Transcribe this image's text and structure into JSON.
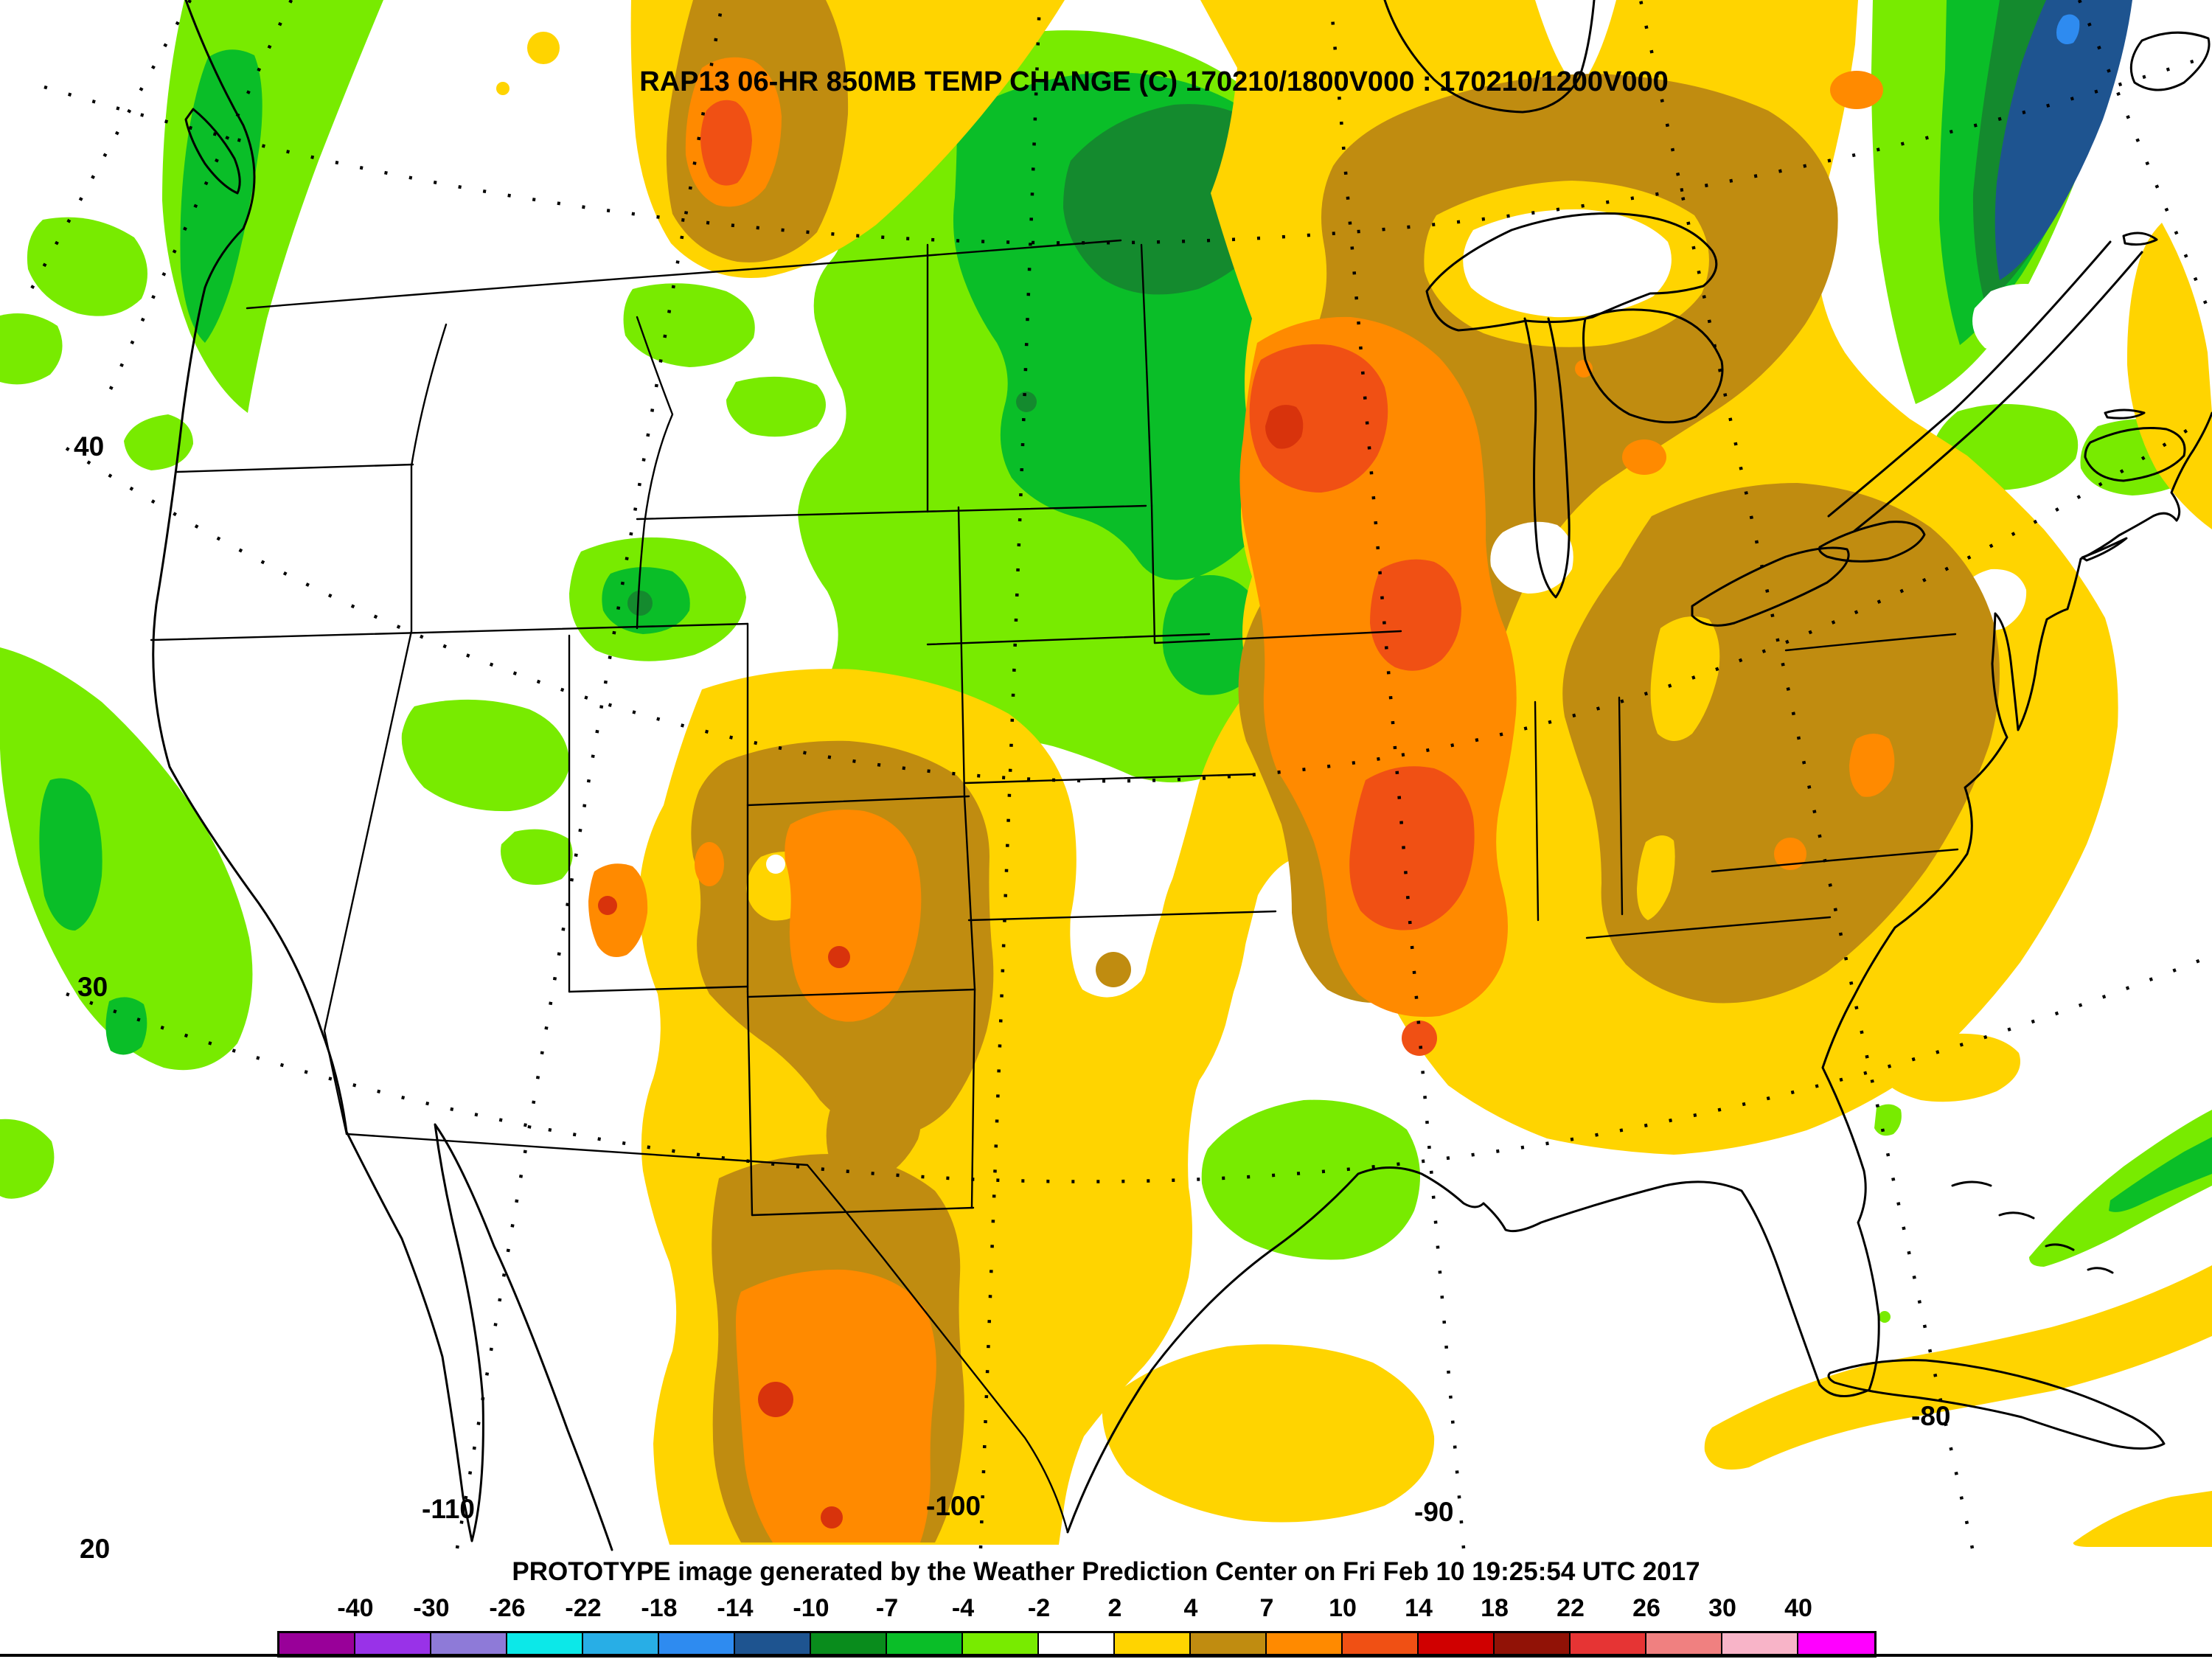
{
  "title": "RAP13 06-HR 850MB TEMP CHANGE (C) 170210/1800V000 : 170210/1200V000",
  "footer": "PROTOTYPE image generated by the Weather Prediction Center on Fri Feb 10 19:25:54 UTC 2017",
  "map": {
    "lat_labels": [
      "40",
      "30",
      "20"
    ],
    "lon_labels": [
      "-110",
      "-100",
      "-90",
      "-80"
    ],
    "palette": {
      "light_green": "#78EB00",
      "green": "#0ABE28",
      "dark_green": "#148A2E",
      "navy": "#1E5490",
      "blue": "#2E8BF0",
      "gold": "#FFD400",
      "dark_gold": "#C08C10",
      "orange": "#FF8A00",
      "orange_red": "#F05014",
      "red": "#D8330C"
    }
  },
  "colorbar": {
    "tick_labels": [
      "-40",
      "-30",
      "-26",
      "-22",
      "-18",
      "-14",
      "-10",
      "-7",
      "-4",
      "-2",
      "2",
      "4",
      "7",
      "10",
      "14",
      "18",
      "22",
      "26",
      "30",
      "40"
    ],
    "cell_colors": [
      "#990099",
      "#9932E8",
      "#8E7AD8",
      "#0CE8E8",
      "#28AEE6",
      "#2E8BF0",
      "#1E5490",
      "#098C1C",
      "#0ABE28",
      "#78EB00",
      "#FFFFFF",
      "#FFD400",
      "#C08C10",
      "#FF8A00",
      "#F05014",
      "#D00000",
      "#911206",
      "#E63434",
      "#F08080",
      "#F8B4C8",
      "#FF00FF"
    ]
  }
}
